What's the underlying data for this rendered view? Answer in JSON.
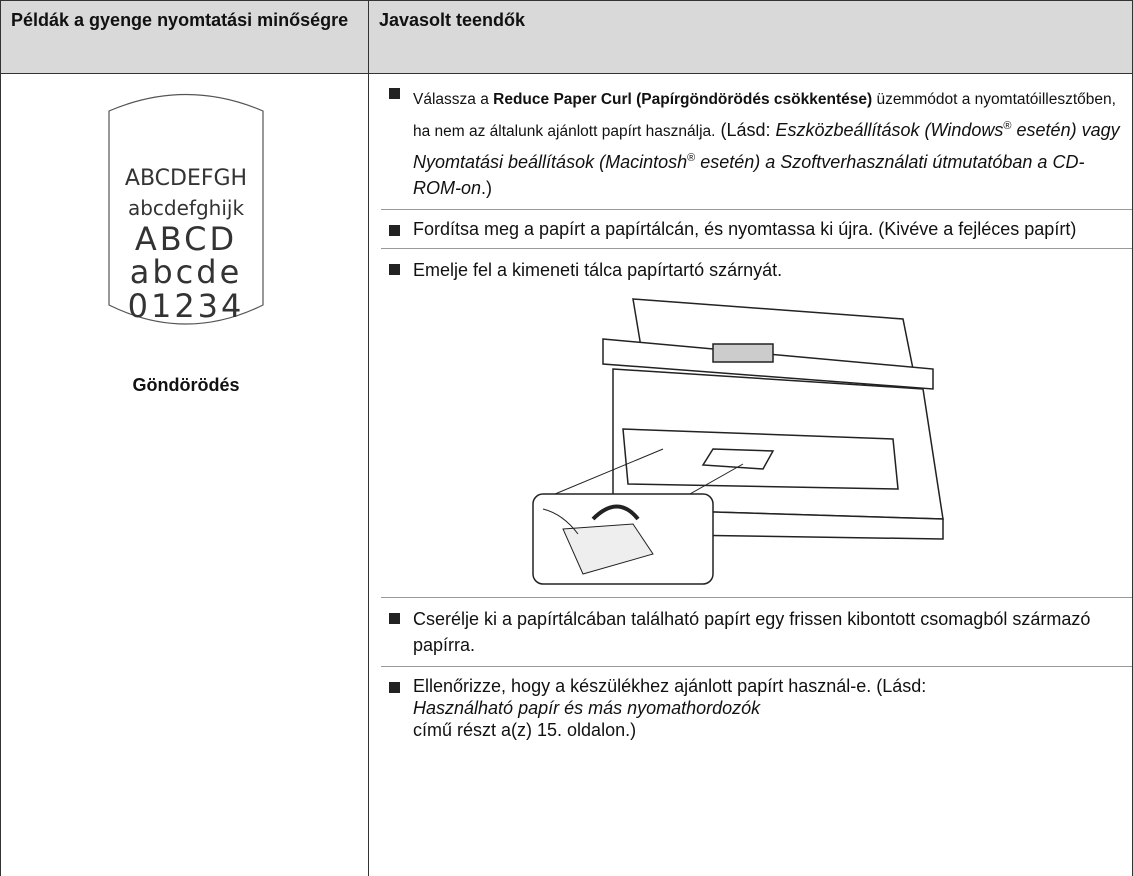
{
  "header": {
    "col1": "Példák a gyenge nyomtatási minőségre",
    "col2": "Javasolt teendők"
  },
  "example": {
    "sample_lines": [
      "ABCDEFGH",
      "abcdefghijk",
      "ABCD",
      "abcde",
      "01234"
    ],
    "caption": "Göndörödés"
  },
  "bullets": [
    [
      "Válassza a ",
      "Reduce Paper Curl (Papírgöndörödés csökkentése)",
      " üzemmódot a nyomtatóillesztőben, ha nem az általunk ajánlott papírt használja.",
      " (Lásd: ",
      "Eszközbeállítások (Windows",
      "®",
      " esetén) vagy Nyomtatási beállítások (Macintosh",
      "®",
      " esetén) a Szoftverhasználati útmutatóban a CD-ROM-on",
      ".)"
    ],
    [
      "Fordítsa meg a papírt a papírtálcán, és nyomtassa ki újra. (Kivéve a fejléces papírt)"
    ],
    [
      "Emelje fel a kimeneti tálca papírtartó szárnyát."
    ],
    [
      "Cserélje ki a papírtálcában található papírt egy frissen kibontott csomagból származó papírra."
    ],
    [
      "Ellenőrizze, hogy a készülékhez ajánlott papírt használ-e. (Lásd: ",
      "Használható papír és más nyomathordozók",
      "című részt a(z) 15. oldalon.)"
    ]
  ]
}
